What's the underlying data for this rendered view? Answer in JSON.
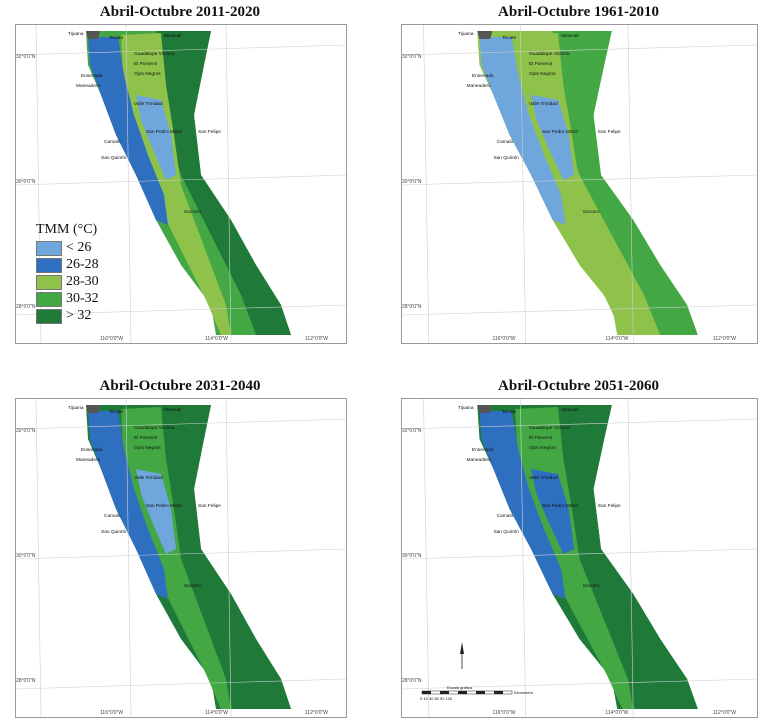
{
  "panels": [
    {
      "title": "Abril-Octubre 2011-2020"
    },
    {
      "title": "Abril-Octubre 1961-2010"
    },
    {
      "title": "Abril-Octubre 2031-2040"
    },
    {
      "title": "Abril-Octubre 2051-2060"
    }
  ],
  "legend": {
    "title": "TMM (°C)",
    "classes": [
      {
        "label": "< 26",
        "color": "#6fa6dc"
      },
      {
        "label": "26-28",
        "color": "#2e6fc0"
      },
      {
        "label": "28-30",
        "color": "#8ec24a"
      },
      {
        "label": "30-32",
        "color": "#43a843"
      },
      {
        "label": "> 32",
        "color": "#1f7a3a"
      }
    ]
  },
  "places": {
    "tijuana": "Tijuana",
    "tecate": "Tecate",
    "mexicali": "Mexicali",
    "guadalupe": "Guadalupe Victoria",
    "porvenir": "El Porvenir",
    "ojos": "Ojos Negros",
    "ensenada": "Ensenada",
    "maneadero": "Maneadero",
    "trinidad": "Valle Trinidad",
    "sanpedro": "San Pedro Mártir",
    "sanfelipe": "San Felipe",
    "camalu": "Camalú",
    "sanquintin": "San Quintín",
    "socorro": "Socorro"
  },
  "scale": {
    "label": "Escala gráfica",
    "unit": "Kilometers",
    "ticks": "0 15 30 60 90 120"
  },
  "graticule": {
    "lon": [
      "116°0'0\"W",
      "114°0'0\"W",
      "112°0'0\"W"
    ],
    "lat": [
      "32°0'0\"N",
      "30°0'0\"N",
      "28°0'0\"N"
    ]
  }
}
